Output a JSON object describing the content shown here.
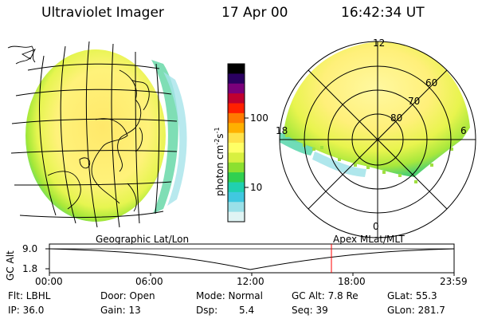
{
  "header": {
    "title": "Ultraviolet Imager",
    "date": "17 Apr 00",
    "time": "16:42:34 UT"
  },
  "colorbar": {
    "unit_label": "photon cm",
    "unit_sup1": "-2",
    "unit_s": "s",
    "unit_sup2": "-1",
    "tick_100": "100",
    "tick_10": "10",
    "colors": [
      "#000000",
      "#2a0060",
      "#7a007a",
      "#c00030",
      "#ff2000",
      "#ff7a00",
      "#ffb000",
      "#ffe24a",
      "#ffff66",
      "#d8f040",
      "#8ce030",
      "#30d050",
      "#20d0b0",
      "#40c8e0",
      "#9ae0e8",
      "#e0f4f4"
    ]
  },
  "polar_plot": {
    "labels": {
      "top": "12",
      "left": "18",
      "right": "6",
      "bottom": "0"
    },
    "lat_labels": [
      "60",
      "70",
      "80"
    ]
  },
  "timeline": {
    "left_title": "Geographic Lat/Lon",
    "right_title": "Apex MLat/MLT",
    "ylabel": "GC Alt",
    "y_top": "9.0",
    "y_bottom": "1.8",
    "time_ticks": [
      "00:00",
      "06:00",
      "12:00",
      "18:00",
      "23:59"
    ]
  },
  "info": {
    "row1": [
      "Flt: LBHL",
      "Door: Open",
      "Mode: Normal",
      "GC Alt: 7.8 Re",
      "GLat: 55.3"
    ],
    "row2": [
      "IP: 36.0",
      "Gain: 13",
      "Dsp:",
      "5.4",
      "Seq: 39",
      "GLon: 281.7"
    ]
  }
}
